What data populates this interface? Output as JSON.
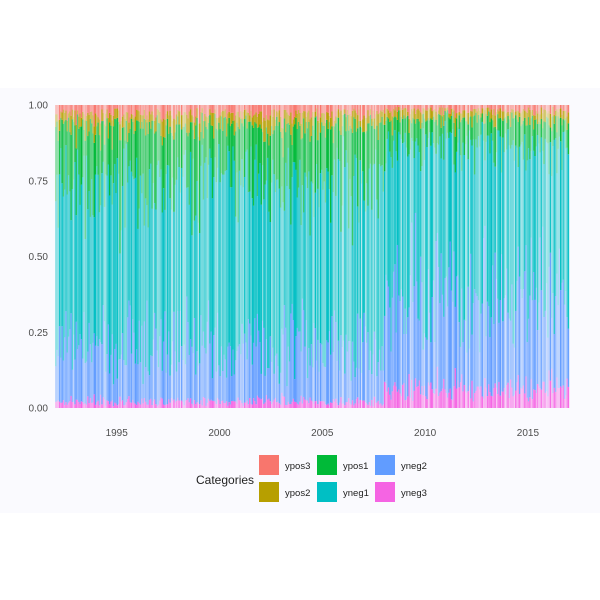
{
  "chart_data": {
    "type": "area",
    "title": "",
    "xlabel": "",
    "ylabel": "",
    "x_range": [
      1992,
      2017
    ],
    "ylim": [
      0,
      1
    ],
    "x_ticks": [
      "1995",
      "2000",
      "2005",
      "2010",
      "2015"
    ],
    "y_ticks": [
      "0.00",
      "0.25",
      "0.50",
      "0.75",
      "1.00"
    ],
    "stacking": "fill",
    "grid": false,
    "legend": {
      "title": "Categories",
      "position": "bottom",
      "entries": [
        {
          "name": "ypos3",
          "color": "#F8766D"
        },
        {
          "name": "ypos2",
          "color": "#B79F00"
        },
        {
          "name": "ypos1",
          "color": "#00BA38"
        },
        {
          "name": "yneg1",
          "color": "#00BFC4"
        },
        {
          "name": "yneg2",
          "color": "#619CFF"
        },
        {
          "name": "yneg3",
          "color": "#F564E3"
        }
      ]
    },
    "series": [
      {
        "name": "yneg3",
        "share_pre_2008": 0.02,
        "share_post_2008": 0.06
      },
      {
        "name": "yneg2",
        "share_pre_2008": 0.18,
        "share_post_2008": 0.3
      },
      {
        "name": "yneg1",
        "share_pre_2008": 0.55,
        "share_post_2008": 0.5
      },
      {
        "name": "ypos1",
        "share_pre_2008": 0.18,
        "share_post_2008": 0.09
      },
      {
        "name": "ypos2",
        "share_pre_2008": 0.04,
        "share_post_2008": 0.03
      },
      {
        "name": "ypos3",
        "share_pre_2008": 0.03,
        "share_post_2008": 0.02
      }
    ],
    "colors": {
      "panel_background": "#FAFAFE"
    }
  }
}
